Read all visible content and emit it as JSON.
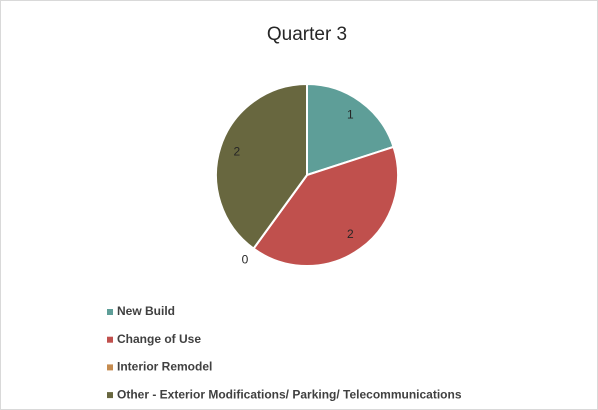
{
  "chart_data": {
    "type": "pie",
    "title": "Quarter 3",
    "categories": [
      "New Build",
      "Change of Use",
      "Interior Remodel",
      "Other - Exterior Modifications/ Parking/ Telecommunications"
    ],
    "values": [
      1,
      2,
      0,
      2
    ],
    "colors": [
      "#5e9e98",
      "#c0504d",
      "#c58b4f",
      "#68673f"
    ],
    "legend": "bottom"
  }
}
